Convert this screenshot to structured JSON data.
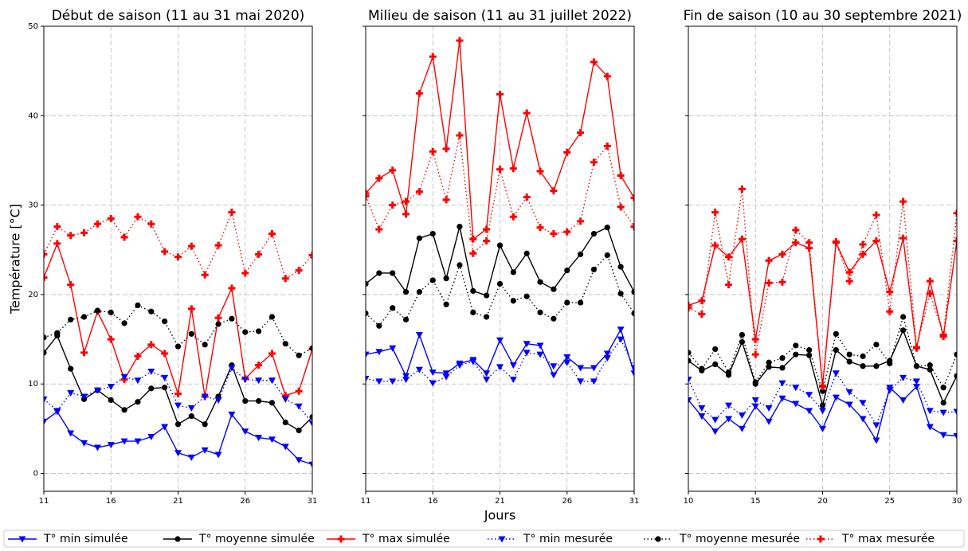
{
  "chart_data": [
    {
      "type": "line",
      "title": "Début de saison (11 au 31 mai 2020)",
      "ylabel": "Température [°C]",
      "x": [
        11,
        12,
        13,
        14,
        15,
        16,
        17,
        18,
        19,
        20,
        21,
        22,
        23,
        24,
        25,
        26,
        27,
        28,
        29,
        30,
        31
      ],
      "xlim": [
        11,
        31
      ],
      "xticks": [
        11,
        16,
        21,
        26,
        31
      ],
      "ylim": [
        -2,
        50
      ],
      "yticks": [
        0,
        10,
        20,
        30,
        40,
        50
      ],
      "grid": true,
      "series": [
        {
          "name": "T° min simulée",
          "color": "#0000ff",
          "linestyle": "solid",
          "marker": "triangle-down",
          "values": [
            5.8,
            6.9,
            4.5,
            3.4,
            2.9,
            3.2,
            3.6,
            3.6,
            4.1,
            5.2,
            2.3,
            1.8,
            2.6,
            2.1,
            6.6,
            4.7,
            4.0,
            3.8,
            3.0,
            1.5,
            1.0
          ]
        },
        {
          "name": "T° moyenne simulée",
          "color": "#000000",
          "linestyle": "solid",
          "marker": "circle",
          "values": [
            13.5,
            15.4,
            11.7,
            8.3,
            9.3,
            8.2,
            7.1,
            8.0,
            9.5,
            9.6,
            5.5,
            6.4,
            5.5,
            8.6,
            12.1,
            8.1,
            8.1,
            7.9,
            5.7,
            4.8,
            6.3
          ]
        },
        {
          "name": "T° max simulée",
          "color": "#ff0000",
          "linestyle": "solid",
          "marker": "plus",
          "values": [
            21.9,
            25.7,
            21.1,
            13.5,
            18.1,
            15.0,
            10.5,
            13.1,
            14.4,
            13.4,
            8.9,
            18.4,
            8.6,
            17.4,
            20.7,
            10.6,
            12.1,
            13.4,
            8.7,
            9.2,
            13.9
          ]
        },
        {
          "name": "T° min mesurée",
          "color": "#0000ff",
          "linestyle": "dotted",
          "marker": "triangle-down",
          "values": [
            8.3,
            7.0,
            9.0,
            8.6,
            9.3,
            9.7,
            10.8,
            10.4,
            11.4,
            10.7,
            7.6,
            7.3,
            8.6,
            8.2,
            11.8,
            10.5,
            10.4,
            10.4,
            8.3,
            7.5,
            5.6
          ]
        },
        {
          "name": "T° moyenne mesurée",
          "color": "#000000",
          "linestyle": "dotted",
          "marker": "circle",
          "values": [
            15.2,
            15.7,
            17.2,
            17.5,
            18.2,
            18.0,
            16.8,
            18.8,
            18.1,
            17.0,
            14.2,
            15.6,
            14.4,
            16.7,
            17.3,
            15.8,
            15.9,
            17.5,
            14.5,
            13.2,
            14.0
          ]
        },
        {
          "name": "T° max mesurée",
          "color": "#ff0000",
          "linestyle": "dotted",
          "marker": "plus",
          "values": [
            24.5,
            27.6,
            26.6,
            26.9,
            27.9,
            28.5,
            26.4,
            28.7,
            27.9,
            24.8,
            24.2,
            25.4,
            22.2,
            25.5,
            29.2,
            22.4,
            24.5,
            26.8,
            21.8,
            22.7,
            24.4
          ]
        }
      ]
    },
    {
      "type": "line",
      "title": "Milieu de saison (11 au 31 juillet 2022)",
      "xlabel": "Jours",
      "x": [
        11,
        12,
        13,
        14,
        15,
        16,
        17,
        18,
        19,
        20,
        21,
        22,
        23,
        24,
        25,
        26,
        27,
        28,
        29,
        30,
        31
      ],
      "xlim": [
        11,
        31
      ],
      "xticks": [
        11,
        16,
        21,
        26,
        31
      ],
      "ylim": [
        -2,
        50
      ],
      "grid": true,
      "series": [
        {
          "color": "#0000ff",
          "linestyle": "solid",
          "marker": "triangle-down",
          "values": [
            13.3,
            13.6,
            14.0,
            10.9,
            15.5,
            11.3,
            11.2,
            12.3,
            12.7,
            11.2,
            14.9,
            12.1,
            14.5,
            14.3,
            11.0,
            13.0,
            11.8,
            11.8,
            13.4,
            16.1,
            11.2
          ]
        },
        {
          "color": "#000000",
          "linestyle": "solid",
          "marker": "circle",
          "values": [
            21.2,
            22.4,
            22.4,
            20.3,
            26.3,
            26.8,
            21.8,
            27.6,
            20.4,
            19.9,
            25.5,
            22.5,
            24.6,
            21.4,
            20.6,
            22.7,
            24.5,
            26.8,
            27.5,
            23.1,
            20.3
          ]
        },
        {
          "color": "#ff0000",
          "linestyle": "solid",
          "marker": "plus",
          "values": [
            31.3,
            33.0,
            33.9,
            29.0,
            42.5,
            46.6,
            36.3,
            48.4,
            26.2,
            27.3,
            42.4,
            34.1,
            40.3,
            33.8,
            31.6,
            35.9,
            38.1,
            46.0,
            44.4,
            33.3,
            30.8
          ]
        },
        {
          "color": "#0000ff",
          "linestyle": "dotted",
          "marker": "triangle-down",
          "values": [
            10.6,
            10.3,
            10.3,
            10.5,
            11.6,
            10.1,
            10.8,
            12.1,
            12.5,
            10.5,
            11.9,
            10.5,
            13.5,
            13.3,
            12.0,
            12.4,
            10.3,
            10.3,
            12.9,
            15.0,
            11.8
          ]
        },
        {
          "color": "#000000",
          "linestyle": "dotted",
          "marker": "circle",
          "values": [
            17.9,
            16.5,
            18.5,
            17.2,
            20.3,
            21.6,
            18.9,
            23.3,
            18.0,
            17.5,
            21.2,
            19.3,
            19.8,
            18.0,
            17.3,
            19.1,
            19.1,
            22.8,
            24.4,
            20.1,
            17.9
          ]
        },
        {
          "color": "#ff0000",
          "linestyle": "dotted",
          "marker": "plus",
          "values": [
            31.0,
            27.3,
            30.0,
            30.4,
            31.5,
            36.0,
            30.6,
            37.8,
            24.6,
            26.0,
            34.0,
            28.7,
            30.9,
            27.5,
            26.8,
            27.0,
            28.2,
            34.8,
            36.6,
            29.8,
            27.6
          ]
        }
      ]
    },
    {
      "type": "line",
      "title": "Fin de saison (10 au 30 septembre 2021)",
      "x": [
        10,
        11,
        12,
        13,
        14,
        15,
        16,
        17,
        18,
        19,
        20,
        21,
        22,
        23,
        24,
        25,
        26,
        27,
        28,
        29,
        30
      ],
      "xlim": [
        10,
        30
      ],
      "xticks": [
        10,
        15,
        20,
        25,
        30
      ],
      "ylim": [
        -2,
        50
      ],
      "grid": true,
      "series": [
        {
          "color": "#0000ff",
          "linestyle": "solid",
          "marker": "triangle-down",
          "values": [
            8.2,
            6.4,
            4.7,
            6.1,
            5.0,
            7.5,
            5.8,
            8.4,
            7.8,
            7.0,
            5.0,
            8.5,
            7.7,
            6.1,
            3.7,
            9.6,
            8.2,
            9.7,
            5.2,
            4.3,
            4.2
          ]
        },
        {
          "color": "#000000",
          "linestyle": "solid",
          "marker": "circle",
          "values": [
            12.6,
            11.5,
            12.2,
            11.0,
            14.7,
            10.0,
            11.9,
            11.8,
            13.3,
            13.2,
            7.6,
            13.8,
            12.5,
            12.0,
            12.0,
            12.6,
            16.0,
            12.0,
            11.6,
            7.9,
            10.9
          ]
        },
        {
          "color": "#ff0000",
          "linestyle": "solid",
          "marker": "plus",
          "values": [
            18.8,
            19.3,
            25.5,
            24.2,
            26.2,
            15.0,
            23.8,
            24.5,
            25.8,
            25.2,
            9.8,
            25.8,
            22.5,
            24.5,
            26.0,
            20.3,
            26.3,
            14.0,
            21.5,
            15.3,
            26.0
          ]
        },
        {
          "color": "#0000ff",
          "linestyle": "dotted",
          "marker": "triangle-down",
          "values": [
            10.5,
            7.3,
            6.0,
            7.6,
            6.5,
            8.2,
            7.3,
            10.1,
            9.6,
            8.8,
            7.0,
            11.2,
            9.1,
            7.9,
            5.4,
            9.3,
            10.7,
            10.3,
            7.0,
            6.8,
            6.9
          ]
        },
        {
          "color": "#000000",
          "linestyle": "dotted",
          "marker": "circle",
          "values": [
            13.5,
            11.7,
            13.9,
            11.3,
            15.5,
            10.2,
            12.4,
            12.9,
            14.3,
            13.8,
            9.2,
            15.6,
            13.3,
            13.1,
            14.4,
            12.3,
            17.5,
            12.0,
            12.1,
            9.6,
            13.3
          ]
        },
        {
          "color": "#ff0000",
          "linestyle": "dotted",
          "marker": "plus",
          "values": [
            18.5,
            17.8,
            29.2,
            21.1,
            31.8,
            13.3,
            21.3,
            21.4,
            27.2,
            25.8,
            9.7,
            25.9,
            21.5,
            25.6,
            28.9,
            18.1,
            30.4,
            14.1,
            20.1,
            15.5,
            29.1
          ]
        }
      ]
    }
  ]
}
